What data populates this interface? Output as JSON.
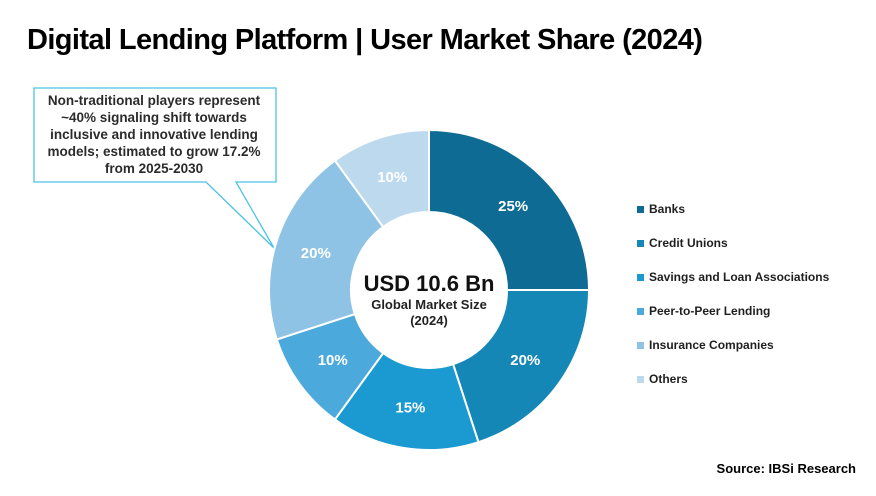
{
  "title": "Digital Lending Platform | User Market Share (2024)",
  "callout": {
    "lines": [
      "Non-traditional players represent",
      "~40% signaling shift towards",
      "inclusive and innovative lending",
      "models; estimated to grow 17.2%",
      "from 2025-2030"
    ]
  },
  "center": {
    "value": "USD 10.6 Bn",
    "line1": "Global Market Size",
    "line2": "(2024)"
  },
  "source": "Source: IBSi Research",
  "colors": {
    "callout_border": "#4cc3e4",
    "callout_text": "#2b2b2b"
  },
  "chart_data": {
    "type": "pie",
    "variant": "donut",
    "unit": "%",
    "categories": [
      "Banks",
      "Credit Unions",
      "Savings and Loan Associations",
      "Peer-to-Peer Lending",
      "Insurance Companies",
      "Others"
    ],
    "values": [
      25,
      20,
      15,
      10,
      20,
      10
    ],
    "labels": [
      "25%",
      "20%",
      "15%",
      "10%",
      "20%",
      "10%"
    ],
    "colors": [
      "#0e6c94",
      "#1587b7",
      "#1a9ad0",
      "#4ca9dc",
      "#8fc3e6",
      "#bcd9ee"
    ],
    "legend_position": "right",
    "start": "top, clockwise"
  }
}
